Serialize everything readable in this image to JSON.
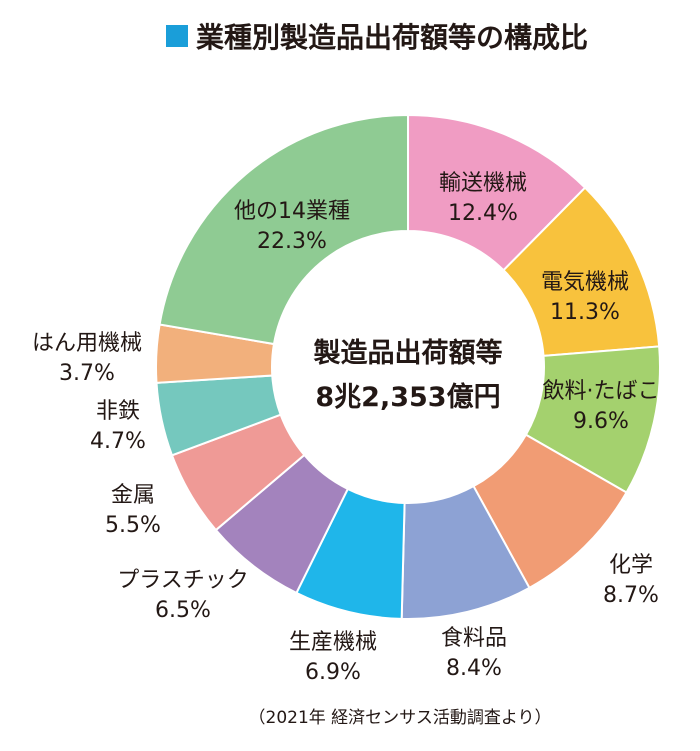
{
  "chart_data": {
    "type": "pie",
    "title": "業種別製造品出荷額等の構成比",
    "center_label": "製造品出荷額等",
    "center_value": "8兆2,353億円",
    "source_note": "（2021年 経済センサス活動調査より）",
    "title_marker_color": "#1a9ed9",
    "slices": [
      {
        "label": "輸送機械",
        "pct_text": "12.4%",
        "value": 12.4,
        "color": "#f09cc3"
      },
      {
        "label": "電気機械",
        "pct_text": "11.3%",
        "value": 11.3,
        "color": "#f8c23d"
      },
      {
        "label": "飲料·たばこ",
        "pct_text": "9.6%",
        "value": 9.6,
        "color": "#a4d16e"
      },
      {
        "label": "化学",
        "pct_text": "8.7%",
        "value": 8.7,
        "color": "#f19c74"
      },
      {
        "label": "食料品",
        "pct_text": "8.4%",
        "value": 8.4,
        "color": "#8da2d4"
      },
      {
        "label": "生産機械",
        "pct_text": "6.9%",
        "value": 6.9,
        "color": "#1fb6ea"
      },
      {
        "label": "プラスチック",
        "pct_text": "6.5%",
        "value": 6.5,
        "color": "#a383bd"
      },
      {
        "label": "金属",
        "pct_text": "5.5%",
        "value": 5.5,
        "color": "#ef9a96"
      },
      {
        "label": "非鉄",
        "pct_text": "4.7%",
        "value": 4.7,
        "color": "#75c8be"
      },
      {
        "label": "はん用機械",
        "pct_text": "3.7%",
        "value": 3.7,
        "color": "#f2b07c"
      },
      {
        "label": "他の14業種",
        "pct_text": "22.3%",
        "value": 22.3,
        "color": "#8fcb93"
      }
    ]
  }
}
